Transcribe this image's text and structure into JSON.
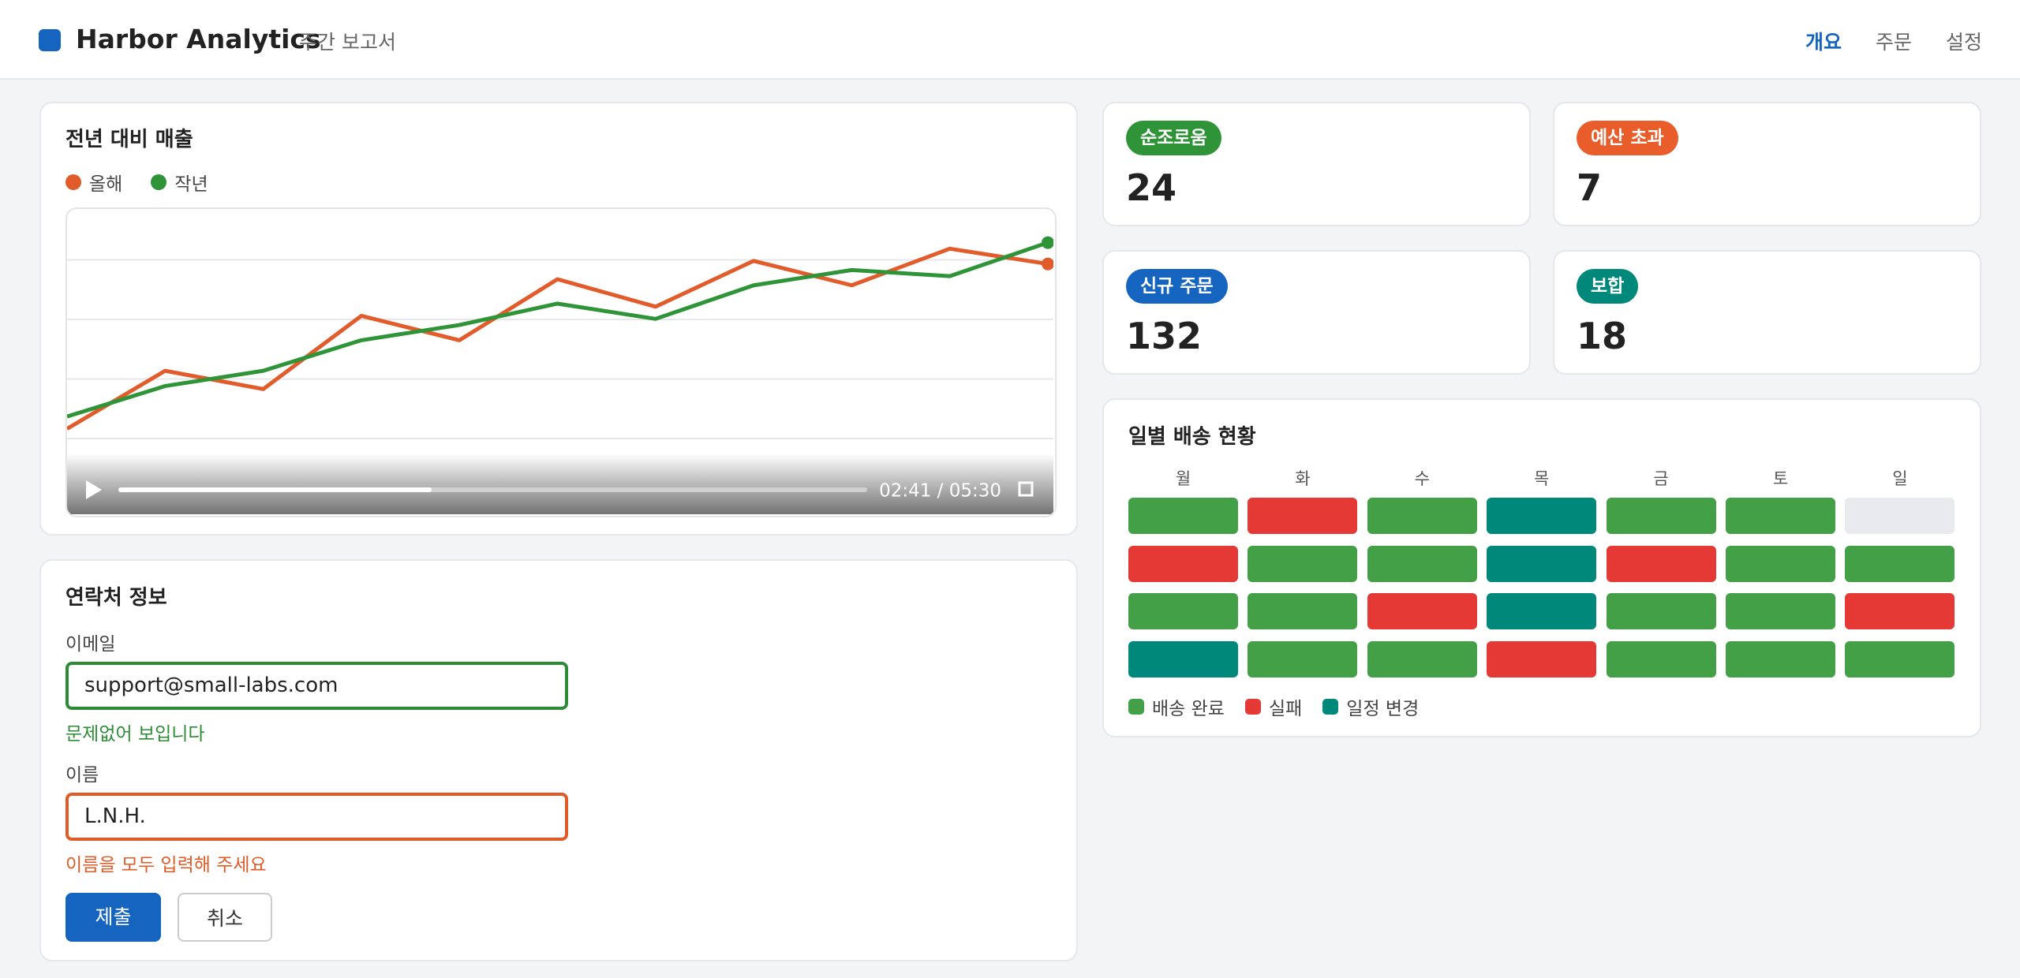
{
  "header": {
    "logo": "Harbor Analytics",
    "subtitle": "주간 보고서",
    "nav": [
      "개요",
      "주문",
      "설정"
    ]
  },
  "sales_card": {
    "title": "전년 대비 매출",
    "video_time": "02:41 / 05:30"
  },
  "chart_data": {
    "type": "line",
    "categories": [
      null,
      null,
      null,
      null,
      null,
      null,
      null,
      null,
      null,
      null,
      null
    ],
    "series": [
      {
        "name": "올해",
        "color": "#e25c2b",
        "values": [
          28,
          47,
          41,
          65,
          57,
          77,
          68,
          83,
          75,
          87,
          82
        ]
      },
      {
        "name": "작년",
        "color": "#2e9437",
        "values": [
          32,
          42,
          47,
          57,
          62,
          69,
          64,
          75,
          80,
          78,
          89
        ]
      }
    ],
    "ylim": [
      0,
      100
    ],
    "grid": true
  },
  "kpis": [
    {
      "label": "순조로움",
      "value": 24,
      "color": "#2e9437"
    },
    {
      "label": "예산 초과",
      "value": 7,
      "color": "#e85d2a"
    },
    {
      "label": "신규 주문",
      "value": 132,
      "color": "#1565c0"
    },
    {
      "label": "보합",
      "value": 18,
      "color": "#00897b"
    }
  ],
  "contact_form": {
    "title": "연락처 정보",
    "fields": [
      {
        "label": "이메일",
        "value": "support@small-labs.com",
        "message": "문제없어 보입니다",
        "status_color": "#2e8b35"
      },
      {
        "label": "이름",
        "value": "L.N.H.",
        "message": "이름을 모두 입력해 주세요",
        "status_color": "#e05a26"
      }
    ],
    "buttons": [
      "제출",
      "취소"
    ]
  },
  "delivery": {
    "title": "일별 배송 현황",
    "days": [
      "월",
      "화",
      "수",
      "목",
      "금",
      "토",
      "일"
    ],
    "legend": [
      {
        "name": "배송 완료",
        "color": "#43a047"
      },
      {
        "name": "실패",
        "color": "#e53935"
      },
      {
        "name": "일정 변경",
        "color": "#00897b"
      }
    ],
    "grid": [
      [
        0,
        1,
        0,
        2,
        0,
        0,
        null
      ],
      [
        1,
        0,
        0,
        2,
        1,
        0,
        0
      ],
      [
        0,
        0,
        1,
        2,
        0,
        0,
        1
      ],
      [
        2,
        0,
        0,
        1,
        0,
        0,
        0
      ]
    ]
  }
}
